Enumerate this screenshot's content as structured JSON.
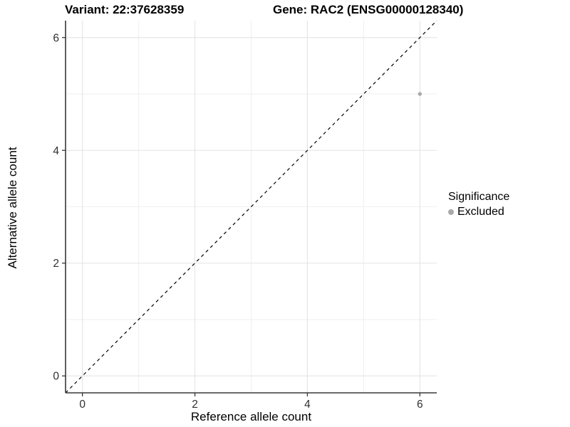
{
  "chart_data": {
    "type": "scatter",
    "title_left": "Variant: 22:37628359",
    "title_right": "Gene: RAC2 (ENSG00000128340)",
    "xlabel": "Reference allele count",
    "ylabel": "Alternative allele count",
    "xlim": [
      -0.3,
      6.3
    ],
    "ylim": [
      -0.3,
      6.3
    ],
    "xticks": [
      0,
      2,
      4,
      6
    ],
    "yticks": [
      0,
      2,
      4,
      6
    ],
    "minor_ticks": [
      1,
      3,
      5
    ],
    "grid": true,
    "reference_line": {
      "type": "diagonal-y-equals-x",
      "style": "dashed",
      "color": "#000000"
    },
    "series": [
      {
        "name": "Excluded",
        "points": [
          {
            "x": 6,
            "y": 5
          }
        ]
      }
    ],
    "legend": {
      "title": "Significance",
      "position": "right",
      "items": [
        {
          "label": "Excluded",
          "color": "#a9a9a9"
        }
      ]
    },
    "colors": {
      "point": "#a9a9a9",
      "grid_major": "#e4e4e4",
      "grid_minor": "#efefef",
      "axis_line": "#383838",
      "tick_text": "#303030",
      "background": "#ffffff"
    }
  }
}
